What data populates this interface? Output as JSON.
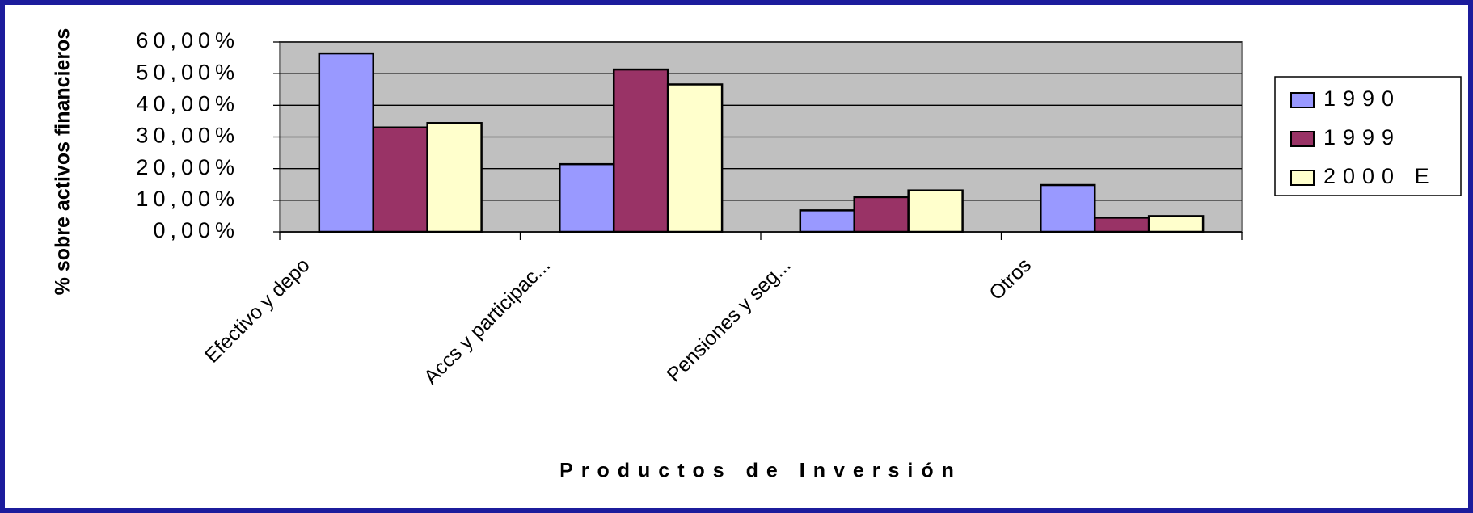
{
  "chart_data": {
    "type": "bar",
    "xlabel": "Productos de Inversión",
    "ylabel": "% sobre activos financieros",
    "categories": [
      "Efectivo y depo",
      "Accs y participac...",
      "Pensiones y seg...",
      "Otros"
    ],
    "series": [
      {
        "name": "1990",
        "color": "#9999ff",
        "values": [
          56.4,
          21.4,
          6.8,
          14.8
        ]
      },
      {
        "name": "1999",
        "color": "#993366",
        "values": [
          33,
          51.3,
          11,
          4.5
        ]
      },
      {
        "name": "2000 E",
        "color": "#ffffcc",
        "values": [
          34.4,
          46.6,
          13.1,
          5
        ]
      }
    ],
    "ylim": [
      0,
      60
    ],
    "yticks": [
      {
        "value": 0,
        "label": "0,00%"
      },
      {
        "value": 10,
        "label": "10,00%"
      },
      {
        "value": 20,
        "label": "20,00%"
      },
      {
        "value": 30,
        "label": "30,00%"
      },
      {
        "value": 40,
        "label": "40,00%"
      },
      {
        "value": 50,
        "label": "50,00%"
      },
      {
        "value": 60,
        "label": "60,00%"
      }
    ],
    "grid": true,
    "legend": "right"
  }
}
